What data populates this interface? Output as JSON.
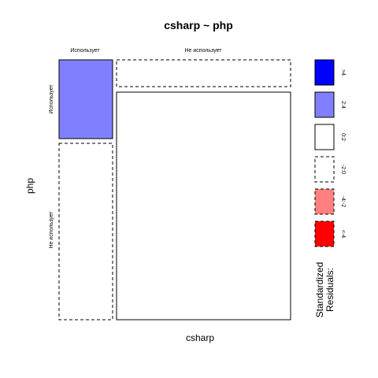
{
  "chart_data": {
    "type": "mosaic",
    "title": "csharp ~ php",
    "xlabel": "csharp",
    "ylabel": "php",
    "x_categories": [
      "Использует",
      "Не использует"
    ],
    "y_categories": [
      "Использует",
      "Не использует"
    ],
    "cells": [
      {
        "x": "Использует",
        "y": "Использует",
        "residual_class": "2:4"
      },
      {
        "x": "Использует",
        "y": "Не использует",
        "residual_class": "-2:0"
      },
      {
        "x": "Не использует",
        "y": "Использует",
        "residual_class": "-2:0"
      },
      {
        "x": "Не использует",
        "y": "Не использует",
        "residual_class": "0:2"
      }
    ],
    "legend": {
      "title_lines": [
        "Standardized",
        "Residuals:"
      ],
      "entries": [
        {
          "label": ">4",
          "fill": "#0000FF",
          "dashed": false
        },
        {
          "label": "2:4",
          "fill": "#8080FF",
          "dashed": false
        },
        {
          "label": "0:2",
          "fill": "#FFFFFF",
          "dashed": false
        },
        {
          "label": "-2:0",
          "fill": "#FFFFFF",
          "dashed": true
        },
        {
          "label": "-4:-2",
          "fill": "#FF8080",
          "dashed": true
        },
        {
          "label": "<-4",
          "fill": "#FF0000",
          "dashed": true
        }
      ]
    }
  }
}
